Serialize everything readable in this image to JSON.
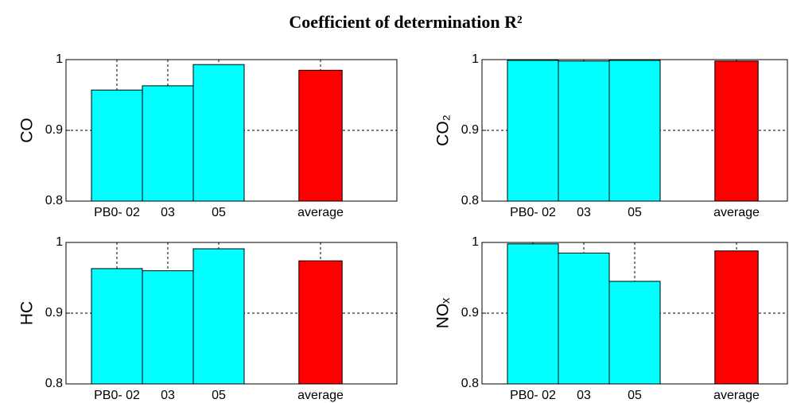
{
  "title": "Coefficient of determination R²",
  "chart_data": [
    {
      "type": "bar",
      "ylabel": "CO",
      "x": [
        1,
        2,
        3,
        5
      ],
      "values": [
        0.957,
        0.963,
        0.993,
        0.985
      ],
      "colors": [
        "#00ffff",
        "#00ffff",
        "#00ffff",
        "#ff0000"
      ],
      "xlim": [
        0,
        6.5
      ],
      "ylim": [
        0.8,
        1
      ],
      "xticks": [
        {
          "value": 1,
          "label": "PB0- 02"
        },
        {
          "value": 2,
          "label": "03"
        },
        {
          "value": 3,
          "label": "05"
        },
        {
          "value": 5,
          "label": "average"
        }
      ],
      "yticks": [
        0.8,
        0.9,
        1
      ],
      "grid": true
    },
    {
      "type": "bar",
      "ylabel": "CO₂",
      "x": [
        1,
        2,
        3,
        5
      ],
      "values": [
        0.999,
        0.998,
        0.999,
        0.998
      ],
      "colors": [
        "#00ffff",
        "#00ffff",
        "#00ffff",
        "#ff0000"
      ],
      "xlim": [
        0,
        6
      ],
      "ylim": [
        0.8,
        1
      ],
      "xticks": [
        {
          "value": 1,
          "label": "PB0- 02"
        },
        {
          "value": 2,
          "label": "03"
        },
        {
          "value": 3,
          "label": "05"
        },
        {
          "value": 5,
          "label": "average"
        }
      ],
      "yticks": [
        0.8,
        0.9,
        1
      ],
      "grid": true
    },
    {
      "type": "bar",
      "ylabel": "HC",
      "x": [
        1,
        2,
        3,
        5
      ],
      "values": [
        0.963,
        0.96,
        0.991,
        0.974
      ],
      "colors": [
        "#00ffff",
        "#00ffff",
        "#00ffff",
        "#ff0000"
      ],
      "xlim": [
        0,
        6.5
      ],
      "ylim": [
        0.8,
        1
      ],
      "xticks": [
        {
          "value": 1,
          "label": "PB0- 02"
        },
        {
          "value": 2,
          "label": "03"
        },
        {
          "value": 3,
          "label": "05"
        },
        {
          "value": 5,
          "label": "average"
        }
      ],
      "yticks": [
        0.8,
        0.9,
        1
      ],
      "grid": true
    },
    {
      "type": "bar",
      "ylabel": "NOₓ",
      "x": [
        1,
        2,
        3,
        5
      ],
      "values": [
        0.998,
        0.985,
        0.945,
        0.988
      ],
      "colors": [
        "#00ffff",
        "#00ffff",
        "#00ffff",
        "#ff0000"
      ],
      "xlim": [
        0,
        6
      ],
      "ylim": [
        0.8,
        1
      ],
      "xticks": [
        {
          "value": 1,
          "label": "PB0- 02"
        },
        {
          "value": 2,
          "label": "03"
        },
        {
          "value": 3,
          "label": "05"
        },
        {
          "value": 5,
          "label": "average"
        }
      ],
      "yticks": [
        0.8,
        0.9,
        1
      ],
      "grid": true
    }
  ]
}
